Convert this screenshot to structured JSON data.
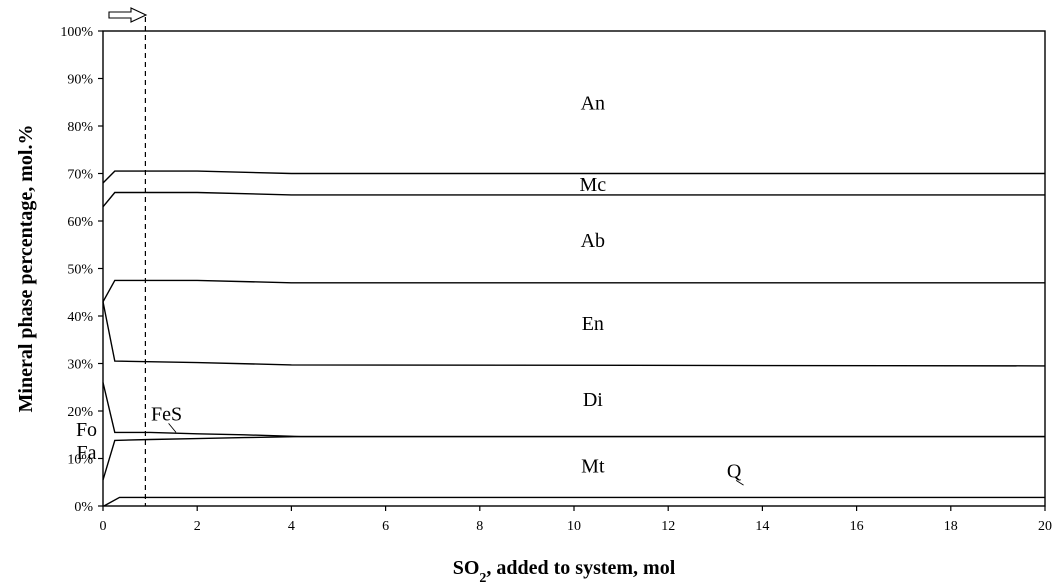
{
  "chart_data": {
    "type": "area",
    "title": "",
    "xlabel_main": "SO",
    "xlabel_sub": "2",
    "xlabel_rest": ", added to system, mol",
    "ylabel": "Mineral phase percentage, mol.%",
    "xlim": [
      0,
      20
    ],
    "ylim": [
      0,
      100
    ],
    "x_ticks": [
      "0",
      "2",
      "4",
      "6",
      "8",
      "10",
      "12",
      "14",
      "16",
      "18",
      "20"
    ],
    "y_ticks": [
      "0%",
      "10%",
      "20%",
      "30%",
      "40%",
      "50%",
      "60%",
      "70%",
      "80%",
      "90%",
      "100%"
    ],
    "grid": false,
    "marker": {
      "x": 0.9,
      "style": "dashed",
      "arrow": "right"
    },
    "phase_labels": [
      {
        "text": "An",
        "x": 10.4,
        "y": 85
      },
      {
        "text": "Mc",
        "x": 10.4,
        "y": 67.8
      },
      {
        "text": "Ab",
        "x": 10.4,
        "y": 56
      },
      {
        "text": "En",
        "x": 10.4,
        "y": 38.5
      },
      {
        "text": "Di",
        "x": 10.4,
        "y": 22.5
      },
      {
        "text": "Mt",
        "x": 10.4,
        "y": 8.5
      },
      {
        "text": "Q",
        "x": 13.4,
        "y": 7.5,
        "leader_to": [
          13.6,
          4.4
        ]
      },
      {
        "text": "FeS",
        "x": 1.35,
        "y": 19.5,
        "leader_to": [
          1.55,
          15.5
        ]
      },
      {
        "text": "Fo",
        "x": -0.35,
        "y": 16.2
      },
      {
        "text": "Fa",
        "x": -0.35,
        "y": 11.4
      }
    ],
    "series": [
      {
        "x": [
          0,
          0.25,
          2,
          4,
          20
        ],
        "y": [
          68,
          70.5,
          70.5,
          70.0,
          70.0
        ]
      },
      {
        "x": [
          0,
          0.25,
          2,
          4,
          20
        ],
        "y": [
          63,
          66,
          66,
          65.5,
          65.5
        ]
      },
      {
        "x": [
          0,
          0.25,
          2,
          4,
          20
        ],
        "y": [
          43,
          47.5,
          47.5,
          47.0,
          47.0
        ]
      },
      {
        "x": [
          0,
          0.25,
          2,
          4,
          20
        ],
        "y": [
          43,
          30.5,
          30.2,
          29.7,
          29.5
        ]
      },
      {
        "x": [
          0,
          0.25,
          1,
          2,
          3,
          4.2,
          20
        ],
        "y": [
          26,
          15.5,
          15.5,
          15.2,
          15.0,
          14.6,
          14.6
        ]
      },
      {
        "x": [
          0,
          0.25,
          1,
          2,
          3,
          4.2,
          20
        ],
        "y": [
          5.5,
          13.8,
          14.0,
          14.2,
          14.4,
          14.6,
          14.6
        ]
      },
      {
        "x": [
          0.02,
          0.35,
          20
        ],
        "y": [
          0,
          1.8,
          1.8
        ]
      }
    ]
  }
}
